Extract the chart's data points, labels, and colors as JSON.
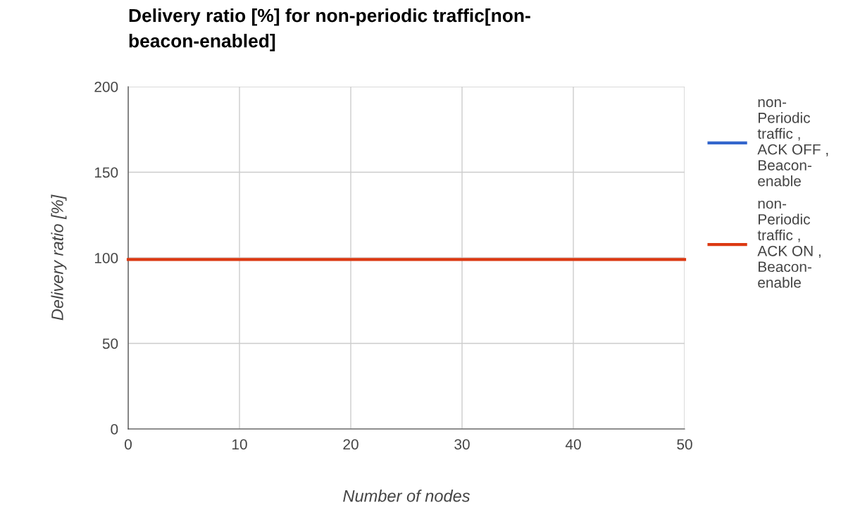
{
  "chart_data": {
    "type": "line",
    "title": "Delivery ratio [%] for non-periodic traffic[non-beacon-enabled]",
    "xlabel": "Number of nodes",
    "ylabel": "Delivery ratio [%]",
    "x": [
      0,
      50
    ],
    "series": [
      {
        "name": "non-Periodic traffic , ACK OFF , Beacon-enable",
        "color": "#3366cc",
        "values": [
          null,
          null
        ]
      },
      {
        "name": "non-Periodic traffic , ACK ON , Beacon-enable",
        "color": "#dc3912",
        "values": [
          99,
          99
        ]
      }
    ],
    "xlim": [
      0,
      50
    ],
    "xticks": [
      0,
      10,
      20,
      30,
      40,
      50
    ],
    "ylim": [
      0,
      200
    ],
    "yticks": [
      0,
      50,
      100,
      150,
      200
    ],
    "grid": true,
    "legend": "right"
  }
}
